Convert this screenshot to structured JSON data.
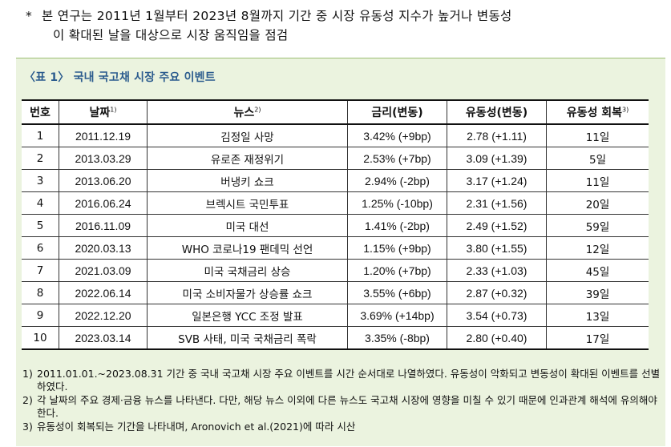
{
  "intro": {
    "star": "*",
    "line1": "본 연구는 2011년 1월부터 2023년 8월까지 기간 중 시장 유동성 지수가 높거나 변동성",
    "line2": "이 확대된 날을 대상으로 시장 움직임을 점검"
  },
  "caption": "〈표 1〉 국내 국고채 시장 주요 이벤트",
  "table": {
    "headers": [
      {
        "label": "번호",
        "sup": ""
      },
      {
        "label": "날짜",
        "sup": "1)"
      },
      {
        "label": "뉴스",
        "sup": "2)"
      },
      {
        "label": "금리(변동)",
        "sup": ""
      },
      {
        "label": "유동성(변동)",
        "sup": ""
      },
      {
        "label": "유동성 회복",
        "sup": "3)"
      }
    ],
    "rows": [
      [
        "1",
        "2011.12.19",
        "김정일 사망",
        "3.42% (+9bp)",
        "2.78 (+1.11)",
        "11일"
      ],
      [
        "2",
        "2013.03.29",
        "유로존 재정위기",
        "2.53% (+7bp)",
        "3.09 (+1.39)",
        "5일"
      ],
      [
        "3",
        "2013.06.20",
        "버냉키 쇼크",
        "2.94% (-2bp)",
        "3.17 (+1.24)",
        "11일"
      ],
      [
        "4",
        "2016.06.24",
        "브렉시트 국민투표",
        "1.25% (-10bp)",
        "2.31 (+1.56)",
        "20일"
      ],
      [
        "5",
        "2016.11.09",
        "미국 대선",
        "1.41% (-2bp)",
        "2.49 (+1.52)",
        "59일"
      ],
      [
        "6",
        "2020.03.13",
        "WHO 코로나19 팬데믹 선언",
        "1.15% (+9bp)",
        "3.80 (+1.55)",
        "12일"
      ],
      [
        "7",
        "2021.03.09",
        "미국 국채금리 상승",
        "1.20% (+7bp)",
        "2.33 (+1.03)",
        "45일"
      ],
      [
        "8",
        "2022.06.14",
        "미국 소비자물가 상승률 쇼크",
        "3.55% (+6bp)",
        "2.87 (+0.32)",
        "39일"
      ],
      [
        "9",
        "2022.12.20",
        "일본은행 YCC 조정 발표",
        "3.69% (+14bp)",
        "3.54 (+0.73)",
        "13일"
      ],
      [
        "10",
        "2023.03.14",
        "SVB 사태, 미국 국채금리 폭락",
        "3.35% (-8bp)",
        "2.80 (+0.40)",
        "17일"
      ]
    ]
  },
  "notes": [
    {
      "key": "1)",
      "text": "2011.01.01.~2023.08.31 기간 중 국내 국고채 시장 주요 이벤트를 시간 순서대로 나열하였다. 유동성이 악화되고 변동성이 확대된 이벤트를 선별하였다."
    },
    {
      "key": "2)",
      "text": "각 날짜의 주요 경제·금융 뉴스를 나타낸다. 다만, 해당 뉴스 이외에 다른 뉴스도 국고채 시장에 영향을 미칠 수 있기 때문에 인과관계 해석에 유의해야 한다."
    },
    {
      "key": "3)",
      "text": "유동성이 회복되는 기간을 나타내며, Aronovich et al.(2021)에 따라 시산"
    }
  ]
}
